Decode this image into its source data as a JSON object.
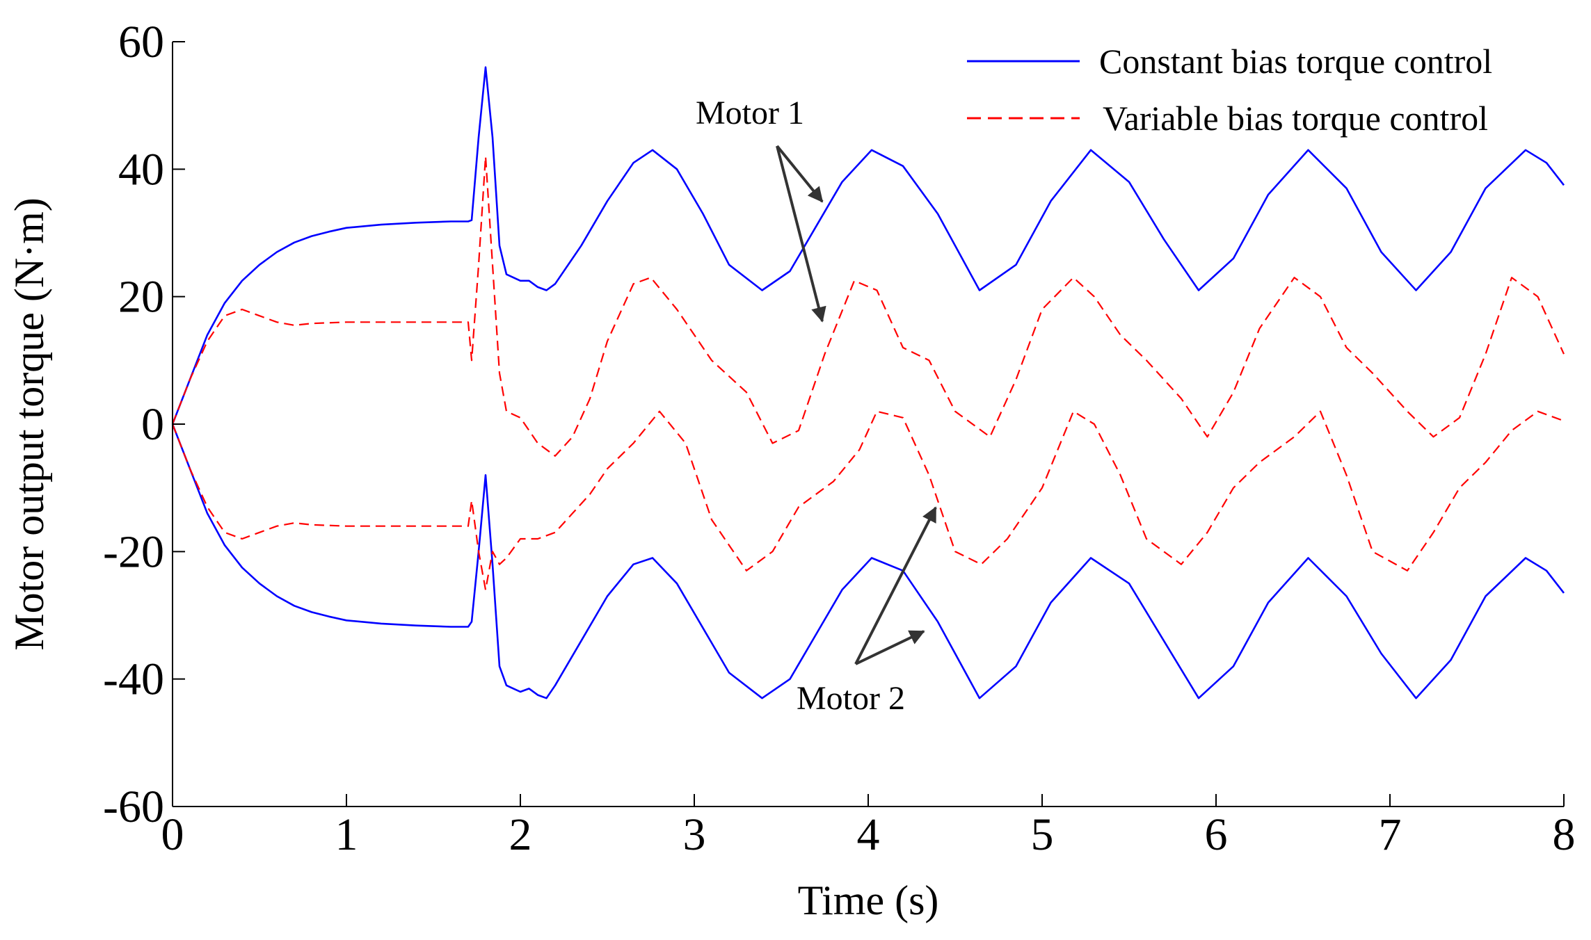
{
  "chart_data": {
    "type": "line",
    "title": "",
    "xlabel": "Time (s)",
    "ylabel": "Motor output torque (N·m)",
    "xlim": [
      0,
      8
    ],
    "ylim": [
      -60,
      60
    ],
    "xticks": [
      0,
      1,
      2,
      3,
      4,
      5,
      6,
      7,
      8
    ],
    "yticks": [
      -60,
      -40,
      -20,
      0,
      20,
      40,
      60
    ],
    "grid": false,
    "legend_position": "top-right",
    "series": [
      {
        "name": "Constant bias torque control",
        "style": "solid",
        "color": "#0000ff",
        "curves": [
          {
            "motor": "Motor 1",
            "x": [
              0,
              0.1,
              0.2,
              0.3,
              0.4,
              0.5,
              0.6,
              0.7,
              0.8,
              0.9,
              1.0,
              1.2,
              1.4,
              1.6,
              1.7,
              1.72,
              1.76,
              1.8,
              1.84,
              1.88,
              1.92,
              1.96,
              2.0,
              2.05,
              2.1,
              2.15,
              2.2,
              2.35,
              2.5,
              2.65,
              2.76,
              2.9,
              3.05,
              3.2,
              3.39,
              3.55,
              3.7,
              3.85,
              4.02,
              4.2,
              4.4,
              4.64,
              4.85,
              5.05,
              5.28,
              5.5,
              5.7,
              5.9,
              6.1,
              6.3,
              6.53,
              6.75,
              6.95,
              7.15,
              7.35,
              7.55,
              7.78,
              7.9,
              8.0
            ],
            "y": [
              0,
              7,
              14,
              19,
              22.5,
              25,
              27,
              28.5,
              29.5,
              30.2,
              30.8,
              31.3,
              31.6,
              31.8,
              31.8,
              32,
              45,
              56,
              45,
              28,
              23.5,
              23,
              22.5,
              22.5,
              21.5,
              21,
              22,
              28,
              35,
              41,
              43,
              40,
              33,
              25,
              21,
              24,
              31,
              38,
              43,
              40.5,
              33,
              21,
              25,
              35,
              43,
              38,
              29,
              21,
              26,
              36,
              43,
              37,
              27,
              21,
              27,
              37,
              43,
              41,
              37.5
            ]
          },
          {
            "motor": "Motor 2",
            "x": [
              0,
              0.1,
              0.2,
              0.3,
              0.4,
              0.5,
              0.6,
              0.7,
              0.8,
              0.9,
              1.0,
              1.2,
              1.4,
              1.6,
              1.7,
              1.72,
              1.76,
              1.8,
              1.84,
              1.88,
              1.92,
              1.96,
              2.0,
              2.05,
              2.1,
              2.15,
              2.2,
              2.35,
              2.5,
              2.65,
              2.76,
              2.9,
              3.05,
              3.2,
              3.39,
              3.55,
              3.7,
              3.85,
              4.02,
              4.2,
              4.4,
              4.64,
              4.85,
              5.05,
              5.28,
              5.5,
              5.7,
              5.9,
              6.1,
              6.3,
              6.53,
              6.75,
              6.95,
              7.15,
              7.35,
              7.55,
              7.78,
              7.9,
              8.0
            ],
            "y": [
              0,
              -7,
              -14,
              -19,
              -22.5,
              -25,
              -27,
              -28.5,
              -29.5,
              -30.2,
              -30.8,
              -31.3,
              -31.6,
              -31.8,
              -31.8,
              -31,
              -20,
              -8,
              -22,
              -38,
              -41,
              -41.5,
              -42,
              -41.5,
              -42.5,
              -43,
              -41,
              -34,
              -27,
              -22,
              -21,
              -25,
              -32,
              -39,
              -43,
              -40,
              -33,
              -26,
              -21,
              -23,
              -31,
              -43,
              -38,
              -28,
              -21,
              -25,
              -34,
              -43,
              -38,
              -28,
              -21,
              -27,
              -36,
              -43,
              -37,
              -27,
              -21,
              -23,
              -26.5
            ]
          }
        ]
      },
      {
        "name": "Variable bias torque control",
        "style": "dashed",
        "color": "#ff0000",
        "curves": [
          {
            "motor": "Motor 1",
            "x": [
              0,
              0.1,
              0.2,
              0.3,
              0.4,
              0.5,
              0.6,
              0.7,
              0.8,
              1.0,
              1.2,
              1.4,
              1.6,
              1.7,
              1.72,
              1.76,
              1.8,
              1.84,
              1.88,
              1.92,
              2.0,
              2.1,
              2.2,
              2.3,
              2.4,
              2.5,
              2.65,
              2.75,
              2.9,
              3.1,
              3.3,
              3.45,
              3.6,
              3.75,
              3.92,
              4.05,
              4.2,
              4.35,
              4.5,
              4.7,
              4.85,
              5.0,
              5.18,
              5.3,
              5.45,
              5.6,
              5.8,
              5.95,
              6.1,
              6.25,
              6.45,
              6.6,
              6.75,
              6.9,
              7.1,
              7.25,
              7.4,
              7.55,
              7.7,
              7.85,
              8.0
            ],
            "y": [
              0,
              7,
              13,
              17,
              18,
              17,
              16,
              15.5,
              15.8,
              16,
              16,
              16,
              16,
              16,
              10,
              25,
              42,
              25,
              8,
              2,
              1,
              -3,
              -5,
              -2,
              4,
              13,
              22,
              23,
              18,
              10,
              5,
              -3,
              -1,
              11,
              22.5,
              21,
              12,
              10,
              2,
              -2,
              7,
              18,
              23,
              20,
              14,
              10,
              4,
              -2,
              5,
              15,
              23,
              20,
              12,
              8,
              2,
              -2,
              1,
              11,
              23,
              20,
              11
            ]
          },
          {
            "motor": "Motor 2",
            "x": [
              0,
              0.1,
              0.2,
              0.3,
              0.4,
              0.5,
              0.6,
              0.7,
              0.8,
              1.0,
              1.2,
              1.4,
              1.6,
              1.7,
              1.72,
              1.76,
              1.8,
              1.84,
              1.88,
              1.92,
              2.0,
              2.1,
              2.2,
              2.3,
              2.4,
              2.5,
              2.65,
              2.8,
              2.95,
              3.1,
              3.3,
              3.45,
              3.6,
              3.8,
              3.95,
              4.05,
              4.2,
              4.35,
              4.5,
              4.65,
              4.8,
              5.0,
              5.18,
              5.3,
              5.45,
              5.6,
              5.8,
              5.95,
              6.1,
              6.25,
              6.45,
              6.6,
              6.75,
              6.9,
              7.1,
              7.25,
              7.4,
              7.55,
              7.7,
              7.85,
              8.0
            ],
            "y": [
              0,
              -7,
              -13,
              -17,
              -18,
              -17,
              -16,
              -15.5,
              -15.8,
              -16,
              -16,
              -16,
              -16,
              -16,
              -12,
              -20,
              -26,
              -20,
              -22,
              -21,
              -18,
              -18,
              -17,
              -14,
              -11,
              -7,
              -3,
              2,
              -3,
              -15,
              -23,
              -20,
              -13,
              -9,
              -4,
              2,
              1,
              -8,
              -20,
              -22,
              -18,
              -10,
              2,
              0,
              -8,
              -18,
              -22,
              -17,
              -10,
              -6,
              -2,
              2,
              -8,
              -20,
              -23,
              -17,
              -10,
              -6,
              -1,
              2,
              0.5
            ]
          }
        ]
      }
    ],
    "annotations": [
      {
        "label": "Motor 1"
      },
      {
        "label": "Motor 2"
      }
    ]
  }
}
